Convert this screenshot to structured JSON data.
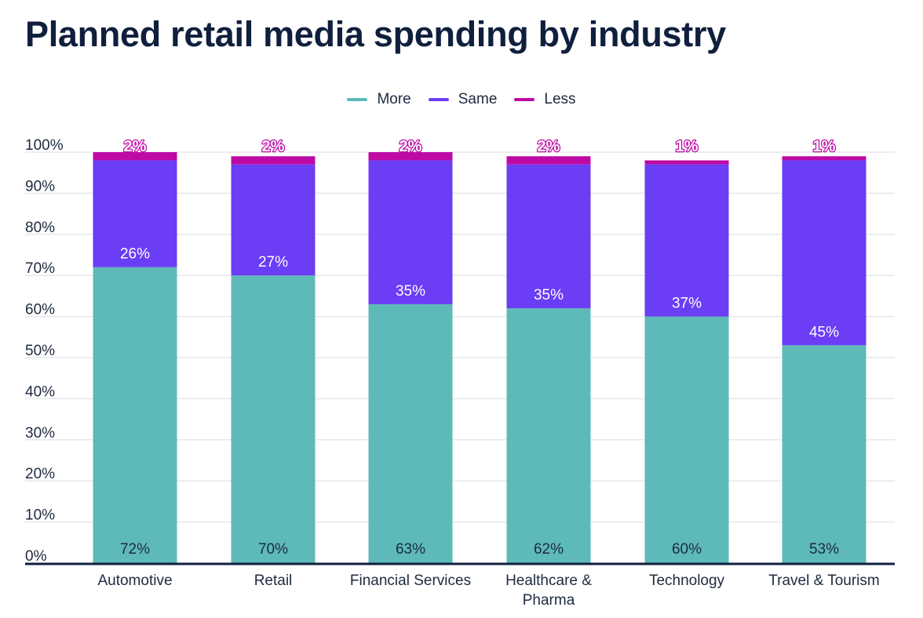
{
  "chart_data": {
    "type": "bar",
    "stacked": true,
    "title": "Planned retail media spending by industry",
    "xlabel": "",
    "ylabel": "",
    "ylim": [
      0,
      100
    ],
    "yticks": [
      "0%",
      "10%",
      "20%",
      "30%",
      "40%",
      "50%",
      "60%",
      "70%",
      "80%",
      "90%",
      "100%"
    ],
    "grid": true,
    "legend_position": "top-center",
    "categories": [
      [
        "Automotive"
      ],
      [
        "Retail"
      ],
      [
        "Financial Services"
      ],
      [
        "Healthcare &",
        "Pharma"
      ],
      [
        "Technology"
      ],
      [
        "Travel & Tourism"
      ]
    ],
    "series": [
      {
        "name": "More",
        "color": "#5dbab8",
        "values": [
          72,
          70,
          63,
          62,
          60,
          53
        ],
        "labels": [
          "72%",
          "70%",
          "63%",
          "62%",
          "60%",
          "53%"
        ],
        "label_color": "#1e2a40"
      },
      {
        "name": "Same",
        "color": "#6b3df5",
        "values": [
          26,
          27,
          35,
          35,
          37,
          45
        ],
        "labels": [
          "26%",
          "27%",
          "35%",
          "35%",
          "37%",
          "45%"
        ],
        "label_color": "#ffffff"
      },
      {
        "name": "Less",
        "color": "#be0aa5",
        "values": [
          2,
          2,
          2,
          2,
          1,
          1
        ],
        "labels": [
          "2%",
          "2%",
          "2%",
          "2%",
          "1%",
          "1%"
        ],
        "label_color": "#be0aa5"
      }
    ],
    "axis_color": "#0f1f3d",
    "grid_color": "#e6e8ec"
  }
}
